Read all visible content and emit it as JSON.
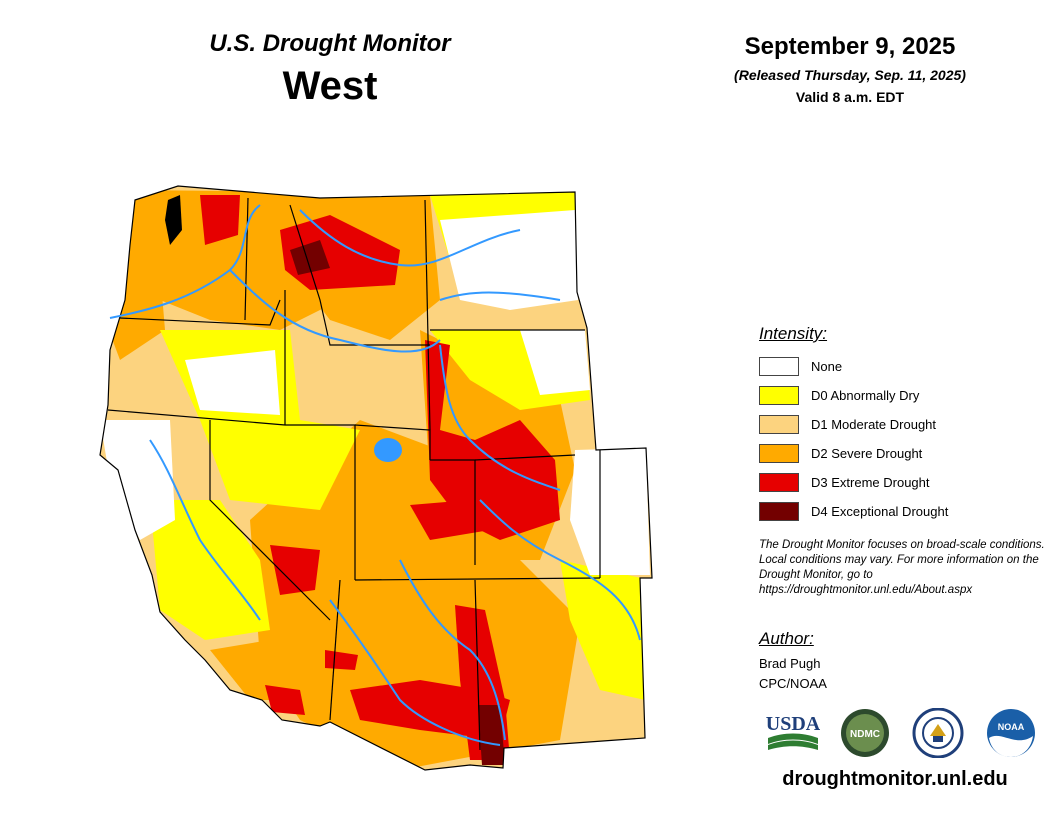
{
  "header": {
    "subtitle": "U.S. Drought Monitor",
    "region": "West",
    "date": "September 9, 2025",
    "released": "(Released Thursday, Sep. 11, 2025)",
    "valid": "Valid 8 a.m. EDT"
  },
  "legend": {
    "title": "Intensity:",
    "items": [
      {
        "label": "None",
        "color": "#ffffff"
      },
      {
        "label": "D0 Abnormally Dry",
        "color": "#ffff00"
      },
      {
        "label": "D1 Moderate Drought",
        "color": "#fcd37f"
      },
      {
        "label": "D2 Severe Drought",
        "color": "#ffaa00"
      },
      {
        "label": "D3 Extreme Drought",
        "color": "#e60000"
      },
      {
        "label": "D4 Exceptional Drought",
        "color": "#730000"
      }
    ]
  },
  "note": "The Drought Monitor focuses on broad-scale conditions. Local conditions may vary. For more information on the Drought Monitor, go to https://droughtmonitor.unl.edu/About.aspx",
  "author": {
    "title": "Author:",
    "name": "Brad Pugh",
    "org": "CPC/NOAA"
  },
  "logos": {
    "usda": "USDA",
    "ndmc": "NDMC",
    "noaa": "NOAA"
  },
  "website": "droughtmonitor.unl.edu",
  "colors": {
    "water": "#3399ff",
    "border": "#000000"
  }
}
